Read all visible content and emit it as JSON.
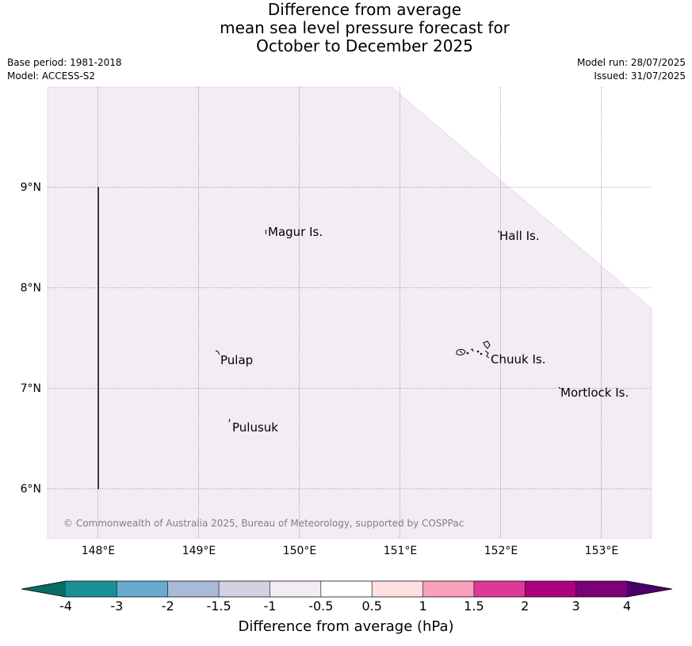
{
  "header": {
    "title_line1": "Difference from average",
    "title_line2": "mean sea level pressure forecast for",
    "title_line3": "October to December 2025",
    "base_period": "Base period: 1981-2018",
    "model": "Model: ACCESS-S2",
    "model_run": "Model run: 28/07/2025",
    "issued": "Issued: 31/07/2025"
  },
  "map": {
    "lat_labels": [
      "9°N",
      "8°N",
      "7°N",
      "6°N"
    ],
    "lon_labels": [
      "148°E",
      "149°E",
      "150°E",
      "151°E",
      "152°E",
      "153°E"
    ],
    "places": [
      "Magur Is.",
      "Hall Is.",
      "Pulap",
      "Chuuk Is.",
      "Mortlock Is.",
      "Pulusuk"
    ],
    "copyright": "© Commonwealth of Australia 2025, Bureau of Meteorology, supported by COSPPac",
    "field_value_class": "-1 to -0.5",
    "field_color": "#f3ecf5"
  },
  "colorbar": {
    "title": "Difference from average (hPa)",
    "ticks": [
      "-4",
      "-3",
      "-2",
      "-1.5",
      "-1",
      "-0.5",
      "0.5",
      "1",
      "1.5",
      "2",
      "3",
      "4"
    ],
    "colors": [
      "#0a6b63",
      "#1b8f98",
      "#67abd1",
      "#a9bad9",
      "#d2d2e4",
      "#f3ecf5",
      "#ffffff",
      "#fde0e0",
      "#f9a0ba",
      "#dd3a98",
      "#ae017e",
      "#7a0177",
      "#49006a"
    ]
  }
}
